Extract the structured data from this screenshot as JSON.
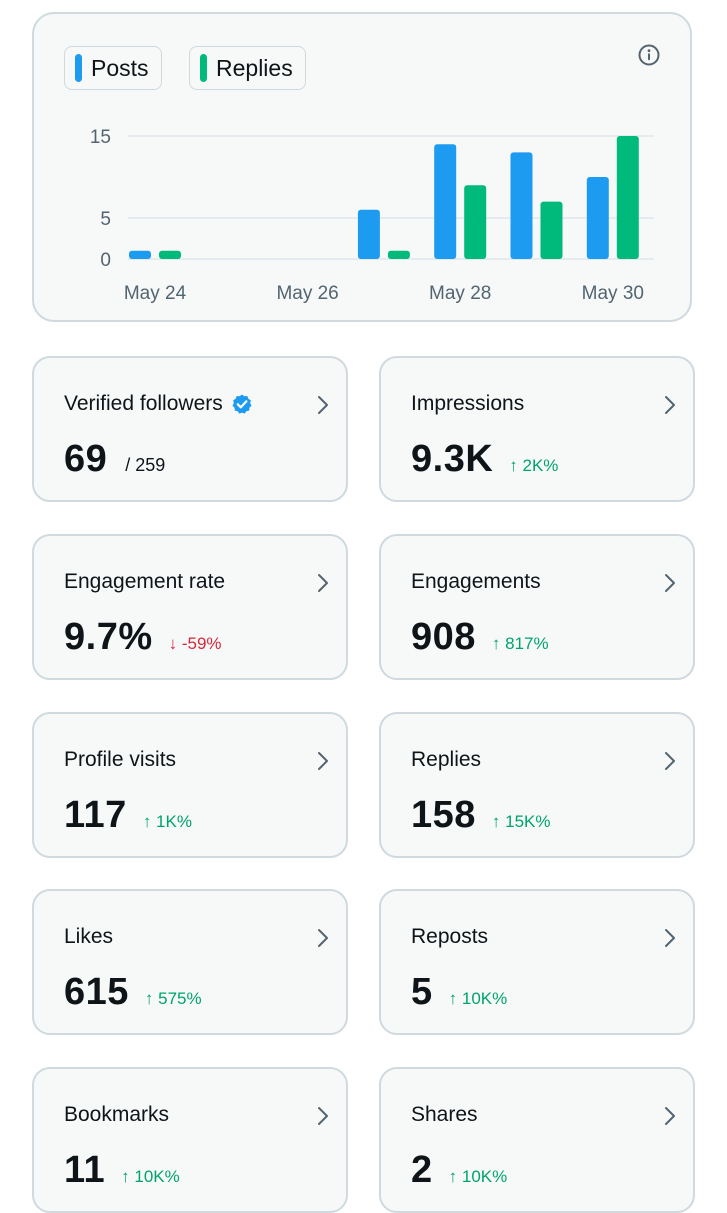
{
  "chart": {
    "legend": [
      {
        "label": "Posts",
        "color": "#1d9bf0"
      },
      {
        "label": "Replies",
        "color": "#00ba7c"
      }
    ],
    "info_icon": "info-circle-icon"
  },
  "chart_data": {
    "type": "bar",
    "categories": [
      "May 24",
      "May 25",
      "May 26",
      "May 27",
      "May 28",
      "May 29",
      "May 30"
    ],
    "x_tick_labels": [
      "May 24",
      "May 26",
      "May 28",
      "May 30"
    ],
    "y_ticks": [
      0,
      5,
      15
    ],
    "ylim": [
      0,
      15
    ],
    "series": [
      {
        "name": "Posts",
        "color": "#1d9bf0",
        "values": [
          1,
          0,
          0,
          6,
          14,
          13,
          10
        ]
      },
      {
        "name": "Replies",
        "color": "#00ba7c",
        "values": [
          1,
          0,
          0,
          1,
          9,
          7,
          15
        ]
      }
    ],
    "grid": true,
    "legend_position": "top-left"
  },
  "stats": [
    {
      "label": "Verified followers",
      "verified": true,
      "value": "69",
      "sub": "/ 259",
      "change": "",
      "direction": ""
    },
    {
      "label": "Impressions",
      "value": "9.3K",
      "sub": "",
      "change": "↑ 2K%",
      "direction": "up"
    },
    {
      "label": "Engagement rate",
      "value": "9.7%",
      "sub": "",
      "change": "↓ -59%",
      "direction": "down"
    },
    {
      "label": "Engagements",
      "value": "908",
      "sub": "",
      "change": "↑ 817%",
      "direction": "up"
    },
    {
      "label": "Profile visits",
      "value": "117",
      "sub": "",
      "change": "↑ 1K%",
      "direction": "up"
    },
    {
      "label": "Replies",
      "value": "158",
      "sub": "",
      "change": "↑ 15K%",
      "direction": "up"
    },
    {
      "label": "Likes",
      "value": "615",
      "sub": "",
      "change": "↑ 575%",
      "direction": "up"
    },
    {
      "label": "Reposts",
      "value": "5",
      "sub": "",
      "change": "↑ 10K%",
      "direction": "up"
    },
    {
      "label": "Bookmarks",
      "value": "11",
      "sub": "",
      "change": "↑ 10K%",
      "direction": "up"
    },
    {
      "label": "Shares",
      "value": "2",
      "sub": "",
      "change": "↑ 10K%",
      "direction": "up"
    }
  ],
  "colors": {
    "up": "#00a46a",
    "down": "#d6273a",
    "card_bg": "#f7f9f9",
    "card_border": "#cfd9de",
    "verified": "#1d9bf0"
  }
}
